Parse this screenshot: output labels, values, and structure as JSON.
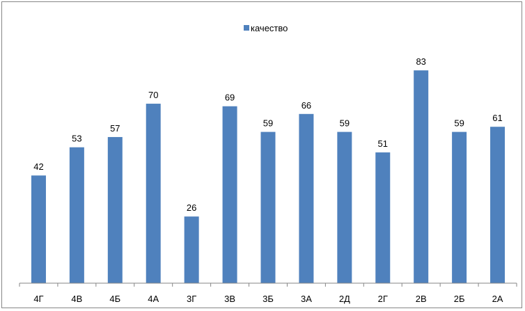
{
  "chart_data": {
    "type": "bar",
    "categories": [
      "4Г",
      "4В",
      "4Б",
      "4А",
      "3Г",
      "3В",
      "3Б",
      "3А",
      "2Д",
      "2Г",
      "2В",
      "2Б",
      "2А"
    ],
    "series": [
      {
        "name": "качество",
        "values": [
          42,
          53,
          57,
          70,
          26,
          69,
          59,
          66,
          59,
          51,
          83,
          59,
          61
        ]
      }
    ],
    "title": "",
    "xlabel": "",
    "ylabel": "",
    "ylim": [
      0,
      90
    ],
    "grid": false,
    "legend": "top-center",
    "bar_color": "#4f81bd"
  }
}
